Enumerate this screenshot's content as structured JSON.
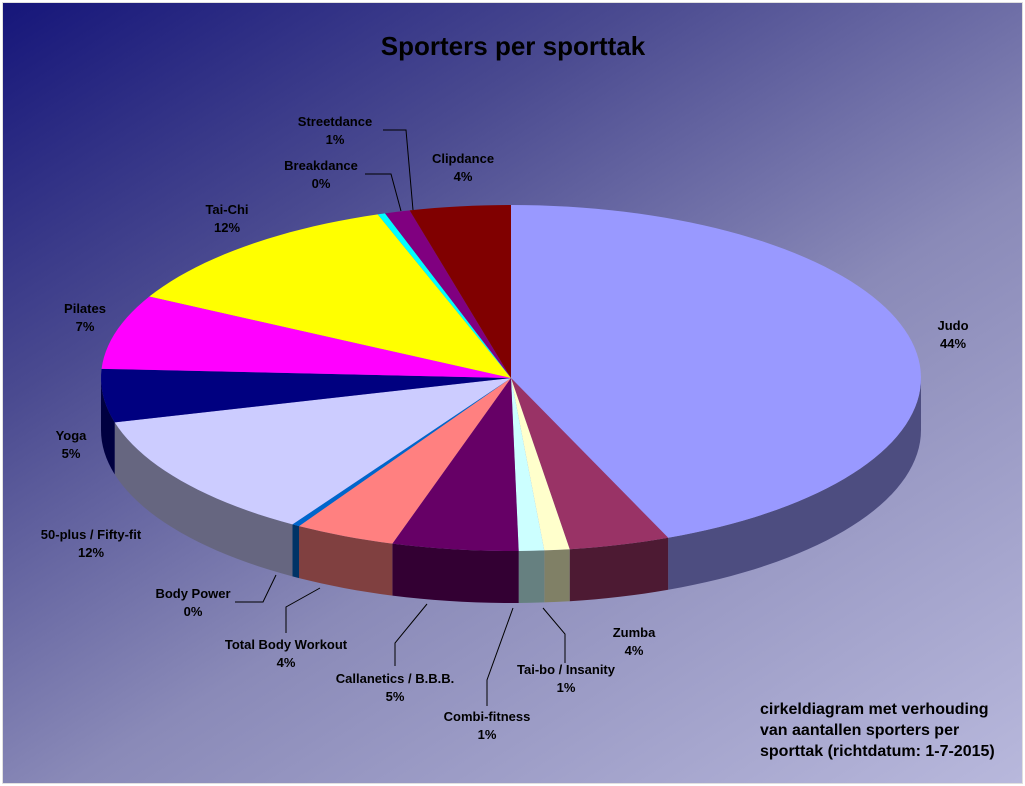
{
  "chart_data": {
    "type": "pie",
    "style": "3d",
    "title": "Sporters per sporttak",
    "start_angle": "12 o'clock",
    "direction": "clockwise",
    "slices": [
      {
        "label": "Judo",
        "value": 44,
        "pct_label": "44%",
        "color": "#9999FF"
      },
      {
        "label": "Zumba",
        "value": 4,
        "pct_label": "4%",
        "color": "#993366"
      },
      {
        "label": "Tai-bo / Insanity",
        "value": 1,
        "pct_label": "1%",
        "color": "#FFFFCC"
      },
      {
        "label": "Combi-fitness",
        "value": 1,
        "pct_label": "1%",
        "color": "#CCFFFF"
      },
      {
        "label": "Callanetics / B.B.B.",
        "value": 5,
        "pct_label": "5%",
        "color": "#660066"
      },
      {
        "label": "Total Body Workout",
        "value": 4,
        "pct_label": "4%",
        "color": "#FF8080"
      },
      {
        "label": "Body Power",
        "value": 0.3,
        "pct_label": "0%",
        "color": "#0066CC"
      },
      {
        "label": "50-plus / Fifty-fit",
        "value": 12,
        "pct_label": "12%",
        "color": "#CCCCFF"
      },
      {
        "label": "Yoga",
        "value": 5,
        "pct_label": "5%",
        "color": "#000080"
      },
      {
        "label": "Pilates",
        "value": 7,
        "pct_label": "7%",
        "color": "#FF00FF"
      },
      {
        "label": "Tai-Chi",
        "value": 12,
        "pct_label": "12%",
        "color": "#FFFF00"
      },
      {
        "label": "Breakdance",
        "value": 0.3,
        "pct_label": "0%",
        "color": "#00FFFF"
      },
      {
        "label": "Streetdance",
        "value": 1,
        "pct_label": "1%",
        "color": "#800080"
      },
      {
        "label": "Clipdance",
        "value": 4,
        "pct_label": "4%",
        "color": "#800000"
      }
    ],
    "annotation": "cirkeldiagram met verhouding van aantallen sporters per sporttak (richtdatum: 1-7-2015)"
  }
}
